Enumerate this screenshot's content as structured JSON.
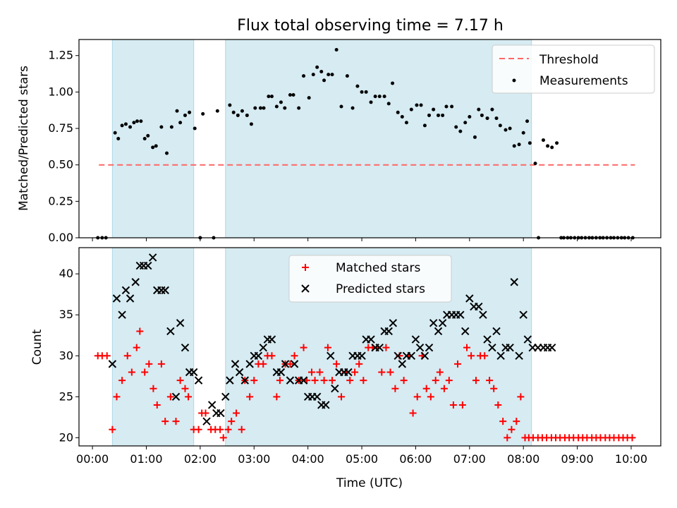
{
  "chart_data": [
    {
      "type": "scatter",
      "title": "Flux total observing time = 7.17 h",
      "xlabel": "",
      "ylabel": "Matched/Predicted stars",
      "ylim": [
        0,
        1.36
      ],
      "xlim": [
        -0.25,
        10.55
      ],
      "yticks": [
        "0.00",
        "0.25",
        "0.50",
        "0.75",
        "1.00",
        "1.25"
      ],
      "grid": false,
      "legend_position": "top-right",
      "shaded_intervals": [
        [
          0.37,
          1.88
        ],
        [
          2.47,
          8.15
        ]
      ],
      "shade_color": "#add8e6",
      "threshold": {
        "name": "Threshold",
        "y": 0.5,
        "x_range": [
          0.12,
          10.07
        ],
        "color": "#ff6666"
      },
      "series": [
        {
          "name": "Measurements",
          "color": "#000000",
          "x": [
            0.1,
            0.18,
            0.25,
            0.42,
            0.48,
            0.55,
            0.62,
            0.7,
            0.77,
            0.83,
            0.9,
            0.97,
            1.03,
            1.12,
            1.18,
            1.28,
            1.38,
            1.47,
            1.57,
            1.63,
            1.72,
            1.8,
            1.9,
            2.0,
            2.05,
            2.25,
            2.32,
            2.55,
            2.62,
            2.7,
            2.78,
            2.87,
            2.95,
            3.02,
            3.12,
            3.18,
            3.27,
            3.33,
            3.42,
            3.5,
            3.57,
            3.67,
            3.73,
            3.83,
            3.92,
            4.02,
            4.1,
            4.17,
            4.25,
            4.3,
            4.38,
            4.45,
            4.53,
            4.62,
            4.73,
            4.83,
            4.92,
            5.0,
            5.08,
            5.17,
            5.25,
            5.33,
            5.42,
            5.5,
            5.57,
            5.67,
            5.75,
            5.83,
            5.92,
            6.02,
            6.1,
            6.17,
            6.25,
            6.33,
            6.42,
            6.5,
            6.57,
            6.67,
            6.75,
            6.83,
            6.92,
            7.0,
            7.1,
            7.17,
            7.23,
            7.33,
            7.42,
            7.5,
            7.57,
            7.67,
            7.75,
            7.83,
            7.92,
            8.0,
            8.07,
            8.12,
            8.22,
            8.28,
            8.37,
            8.45,
            8.53,
            8.62,
            8.7,
            8.75,
            8.82,
            8.88,
            8.95,
            9.02,
            9.08,
            9.15,
            9.22,
            9.28,
            9.35,
            9.42,
            9.48,
            9.55,
            9.62,
            9.68,
            9.75,
            9.82,
            9.88,
            9.95,
            10.03
          ],
          "y": [
            0.0,
            0.0,
            0.0,
            0.72,
            0.68,
            0.77,
            0.78,
            0.76,
            0.79,
            0.8,
            0.8,
            0.68,
            0.7,
            0.62,
            0.63,
            0.76,
            0.58,
            0.76,
            0.87,
            0.79,
            0.84,
            0.86,
            0.75,
            0.0,
            0.85,
            0.0,
            0.87,
            0.91,
            0.86,
            0.84,
            0.87,
            0.84,
            0.78,
            0.89,
            0.89,
            0.89,
            0.97,
            0.97,
            0.9,
            0.93,
            0.89,
            0.98,
            0.98,
            0.89,
            1.11,
            0.96,
            1.12,
            1.17,
            1.14,
            1.08,
            1.12,
            1.12,
            1.29,
            0.9,
            1.11,
            0.89,
            1.04,
            1.0,
            1.0,
            0.93,
            0.97,
            0.97,
            0.97,
            0.92,
            1.06,
            0.86,
            0.83,
            0.79,
            0.88,
            0.91,
            0.91,
            0.77,
            0.84,
            0.88,
            0.84,
            0.84,
            0.9,
            0.9,
            0.76,
            0.73,
            0.79,
            0.83,
            0.69,
            0.88,
            0.84,
            0.82,
            0.88,
            0.82,
            0.77,
            0.74,
            0.75,
            0.63,
            0.64,
            0.72,
            0.8,
            0.65,
            0.51,
            0.0,
            0.67,
            0.63,
            0.62,
            0.65,
            0.0,
            0.0,
            0.0,
            0.0,
            0.0,
            0.0,
            0.0,
            0.0,
            0.0,
            0.0,
            0.0,
            0.0,
            0.0,
            0.0,
            0.0,
            0.0,
            0.0,
            0.0,
            0.0,
            0.0,
            0.0
          ]
        }
      ]
    },
    {
      "type": "scatter",
      "title": "",
      "xlabel": "Time (UTC)",
      "ylabel": "Count",
      "ylim": [
        19,
        43.2
      ],
      "xlim": [
        -0.25,
        10.55
      ],
      "yticks": [
        "20",
        "25",
        "30",
        "35",
        "40"
      ],
      "xticks": [
        "00:00",
        "01:00",
        "02:00",
        "03:00",
        "04:00",
        "05:00",
        "06:00",
        "07:00",
        "08:00",
        "09:00",
        "10:00"
      ],
      "grid": false,
      "legend_position": "top-center",
      "shaded_intervals": [
        [
          0.37,
          1.88
        ],
        [
          2.47,
          8.15
        ]
      ],
      "shade_color": "#add8e6",
      "series": [
        {
          "name": "Matched stars",
          "marker": "+",
          "color": "#ff0000",
          "x": [
            0.1,
            0.18,
            0.27,
            0.37,
            0.45,
            0.55,
            0.65,
            0.73,
            0.82,
            0.88,
            0.97,
            1.05,
            1.13,
            1.2,
            1.28,
            1.35,
            1.45,
            1.55,
            1.63,
            1.72,
            1.78,
            1.88,
            1.97,
            2.03,
            2.1,
            2.2,
            2.28,
            2.37,
            2.43,
            2.52,
            2.58,
            2.67,
            2.77,
            2.83,
            2.92,
            3.0,
            3.08,
            3.17,
            3.25,
            3.33,
            3.42,
            3.48,
            3.58,
            3.67,
            3.75,
            3.83,
            3.92,
            3.98,
            4.07,
            4.13,
            4.22,
            4.3,
            4.37,
            4.45,
            4.53,
            4.62,
            4.7,
            4.78,
            4.87,
            4.95,
            5.03,
            5.12,
            5.2,
            5.28,
            5.37,
            5.45,
            5.53,
            5.62,
            5.7,
            5.78,
            5.87,
            5.95,
            6.03,
            6.12,
            6.2,
            6.28,
            6.37,
            6.45,
            6.53,
            6.62,
            6.7,
            6.78,
            6.87,
            6.95,
            7.03,
            7.12,
            7.2,
            7.28,
            7.37,
            7.45,
            7.53,
            7.62,
            7.7,
            7.78,
            7.87,
            7.95,
            8.03,
            8.1,
            8.18,
            8.27,
            8.35,
            8.43,
            8.52,
            8.6,
            8.68,
            8.77,
            8.85,
            8.93,
            9.02,
            9.1,
            9.18,
            9.27,
            9.35,
            9.43,
            9.52,
            9.6,
            9.68,
            9.77,
            9.85,
            9.93,
            10.02
          ],
          "y": [
            30,
            30,
            30,
            21,
            25,
            27,
            30,
            28,
            31,
            33,
            28,
            29,
            26,
            24,
            29,
            22,
            25,
            22,
            27,
            26,
            25,
            21,
            21,
            23,
            23,
            21,
            21,
            21,
            20,
            21,
            22,
            23,
            21,
            27,
            25,
            27,
            29,
            29,
            30,
            30,
            25,
            27,
            29,
            29,
            30,
            27,
            31,
            27,
            28,
            27,
            28,
            27,
            31,
            27,
            29,
            25,
            28,
            27,
            28,
            29,
            27,
            31,
            31,
            31,
            28,
            31,
            28,
            26,
            30,
            27,
            30,
            23,
            25,
            30,
            26,
            25,
            27,
            28,
            26,
            27,
            24,
            29,
            24,
            31,
            30,
            27,
            30,
            30,
            27,
            26,
            24,
            22,
            20,
            21,
            22,
            25,
            20,
            20,
            20,
            20,
            20,
            20,
            20,
            20,
            20,
            20,
            20,
            20,
            20,
            20,
            20,
            20,
            20,
            20,
            20,
            20,
            20,
            20,
            20,
            20,
            20
          ]
        },
        {
          "name": "Predicted stars",
          "marker": "x",
          "color": "#000000",
          "x": [
            0.37,
            0.45,
            0.55,
            0.62,
            0.7,
            0.8,
            0.88,
            0.95,
            1.03,
            1.12,
            1.2,
            1.28,
            1.35,
            1.45,
            1.55,
            1.63,
            1.72,
            1.8,
            1.88,
            1.97,
            2.12,
            2.22,
            2.3,
            2.38,
            2.47,
            2.55,
            2.65,
            2.73,
            2.83,
            2.92,
            3.0,
            3.08,
            3.17,
            3.25,
            3.33,
            3.42,
            3.5,
            3.58,
            3.67,
            3.75,
            3.83,
            3.92,
            4.0,
            4.08,
            4.17,
            4.25,
            4.33,
            4.42,
            4.5,
            4.58,
            4.67,
            4.75,
            4.83,
            4.92,
            5.0,
            5.08,
            5.17,
            5.25,
            5.33,
            5.42,
            5.5,
            5.58,
            5.67,
            5.75,
            5.83,
            5.92,
            6.0,
            6.08,
            6.17,
            6.25,
            6.33,
            6.42,
            6.5,
            6.58,
            6.67,
            6.75,
            6.83,
            6.92,
            7.0,
            7.08,
            7.17,
            7.25,
            7.33,
            7.42,
            7.5,
            7.58,
            7.67,
            7.75,
            7.83,
            7.92,
            8.0,
            8.08,
            8.17,
            8.27,
            8.37,
            8.45,
            8.53
          ],
          "y": [
            29,
            37,
            35,
            38,
            37,
            39,
            41,
            41,
            41,
            42,
            38,
            38,
            38,
            33,
            25,
            34,
            31,
            28,
            28,
            27,
            22,
            24,
            23,
            23,
            25,
            27,
            29,
            28,
            27,
            29,
            30,
            30,
            31,
            32,
            32,
            28,
            28,
            29,
            27,
            29,
            27,
            27,
            25,
            25,
            25,
            24,
            24,
            30,
            26,
            28,
            28,
            28,
            30,
            30,
            30,
            32,
            32,
            31,
            31,
            33,
            33,
            34,
            30,
            29,
            30,
            30,
            32,
            31,
            30,
            31,
            34,
            33,
            34,
            35,
            35,
            35,
            35,
            33,
            37,
            36,
            36,
            35,
            32,
            31,
            33,
            30,
            31,
            31,
            39,
            30,
            35,
            32,
            31,
            31,
            31,
            31,
            31
          ]
        }
      ]
    }
  ]
}
